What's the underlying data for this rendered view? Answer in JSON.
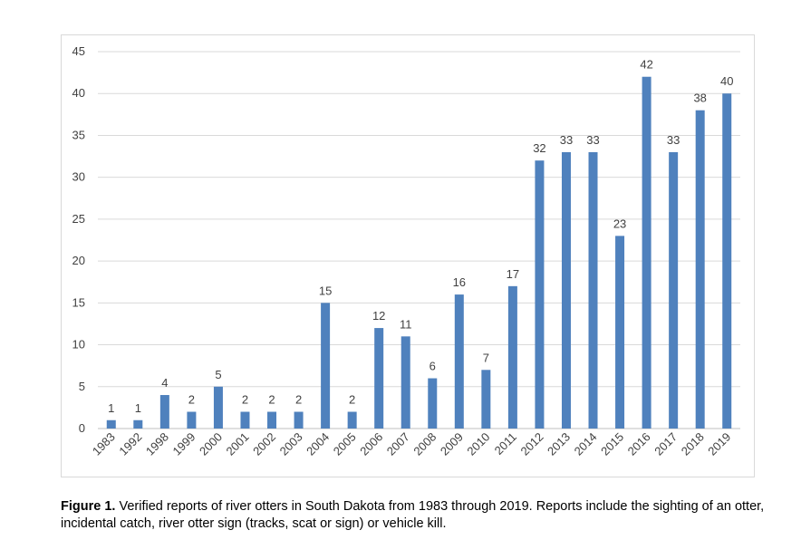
{
  "chart_data": {
    "type": "bar",
    "title": "",
    "xlabel": "",
    "ylabel": "",
    "ylim": [
      0,
      45
    ],
    "yticks": [
      0,
      5,
      10,
      15,
      20,
      25,
      30,
      35,
      40,
      45
    ],
    "grid": true,
    "legend": "none",
    "categories": [
      "1983",
      "1992",
      "1998",
      "1999",
      "2000",
      "2001",
      "2002",
      "2003",
      "2004",
      "2005",
      "2006",
      "2007",
      "2008",
      "2009",
      "2010",
      "2011",
      "2012",
      "2013",
      "2014",
      "2015",
      "2016",
      "2017",
      "2018",
      "2019"
    ],
    "values": [
      1,
      1,
      4,
      2,
      5,
      2,
      2,
      2,
      15,
      2,
      12,
      11,
      6,
      16,
      7,
      17,
      32,
      33,
      33,
      23,
      42,
      33,
      38,
      40
    ],
    "bar_color": "#4f81bd",
    "grid_color": "#d9d9d9",
    "axis_color": "#bfbfbf"
  },
  "caption": {
    "label": "Figure 1.",
    "text": " Verified reports of river otters in South Dakota from 1983 through 2019. Reports include the sighting of an otter, incidental catch, river otter sign (tracks, scat or sign) or vehicle kill."
  }
}
